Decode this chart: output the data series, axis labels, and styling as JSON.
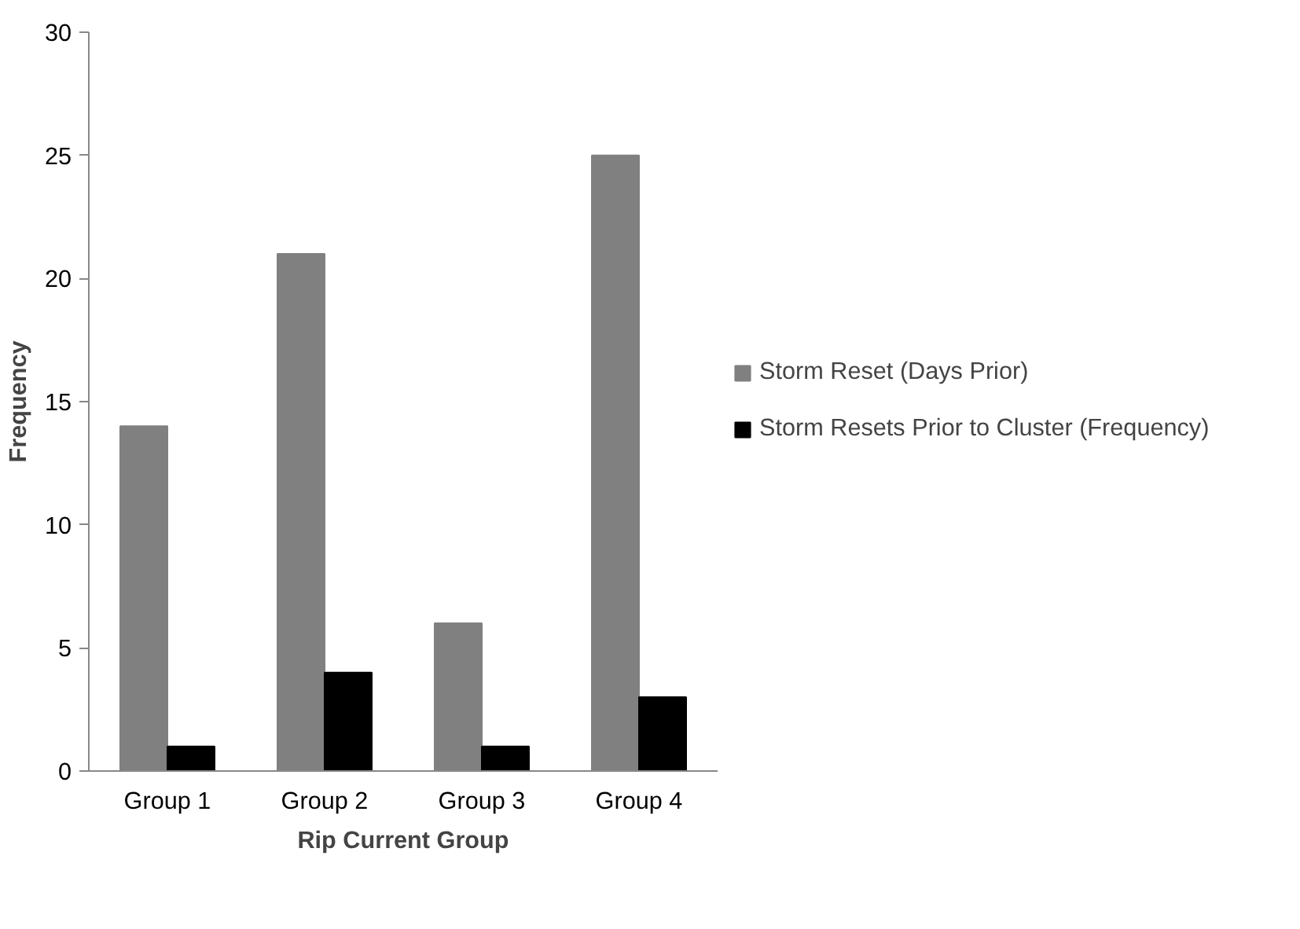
{
  "chart_data": {
    "type": "bar",
    "xlabel": "Rip Current Group",
    "ylabel": "Frequency",
    "categories": [
      "Group 1",
      "Group 2",
      "Group 3",
      "Group 4"
    ],
    "series": [
      {
        "name": "Storm Reset (Days Prior)",
        "color": "#808080",
        "values": [
          14,
          21,
          6,
          25
        ]
      },
      {
        "name": "Storm Resets Prior to Cluster (Frequency)",
        "color": "#000000",
        "values": [
          1,
          4,
          1,
          3
        ]
      }
    ],
    "ylim": [
      0,
      30
    ],
    "yticks": [
      0,
      5,
      10,
      15,
      20,
      25,
      30
    ],
    "grid": false,
    "legend": "right"
  }
}
